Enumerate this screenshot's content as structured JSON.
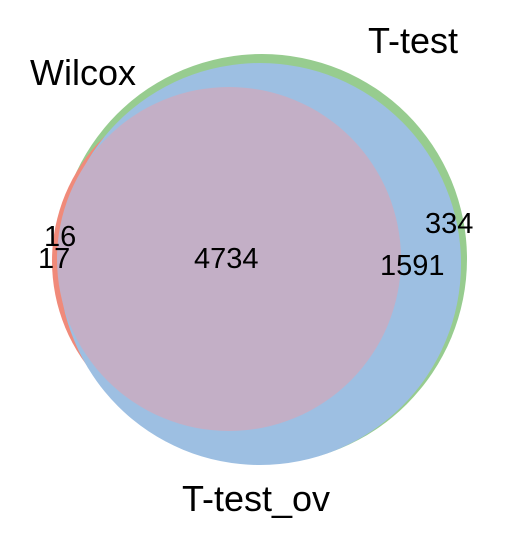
{
  "sets": {
    "wilcox": {
      "label": "Wilcox",
      "color": "#f08a7a"
    },
    "ttest": {
      "label": "T-test",
      "color": "#97cc8f"
    },
    "ttest_ov": {
      "label": "T-test_ov",
      "color": "#9dbfe2"
    }
  },
  "overlap_colors": {
    "ttest_and_ttest_ov": "#9dbfe2",
    "all_three": "#c3afc6"
  },
  "regions": {
    "ttest_only": "334",
    "ttest_and_ttest_ov": "1591",
    "all_three": "4734",
    "wilcox_and_ttest": "16",
    "wilcox_only": "17"
  }
}
